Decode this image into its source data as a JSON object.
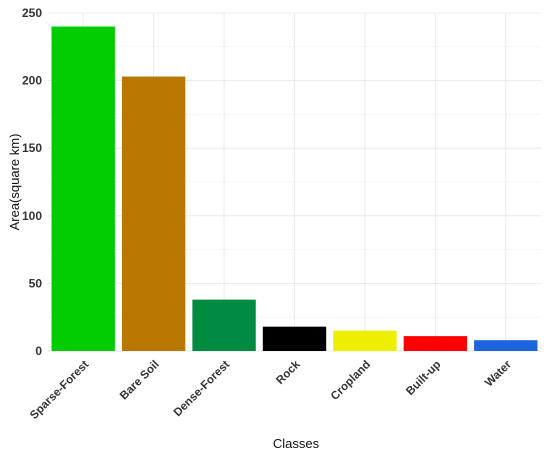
{
  "chart_data": {
    "type": "bar",
    "xlabel": "Classes",
    "ylabel": "Area(square km)",
    "categories": [
      "Sparse-Forest",
      "Bare Soil",
      "Dense-Forest",
      "Rock",
      "Cropland",
      "Built-up",
      "Water"
    ],
    "values": [
      240,
      203,
      38,
      18,
      15,
      11,
      8
    ],
    "colors": [
      "#00cc00",
      "#b87800",
      "#008b40",
      "#000000",
      "#eeee00",
      "#ff0000",
      "#1e64dc"
    ],
    "ylim": [
      0,
      250
    ],
    "yticks": [
      0,
      50,
      100,
      150,
      200,
      250
    ],
    "grid": true,
    "legend": "none"
  }
}
